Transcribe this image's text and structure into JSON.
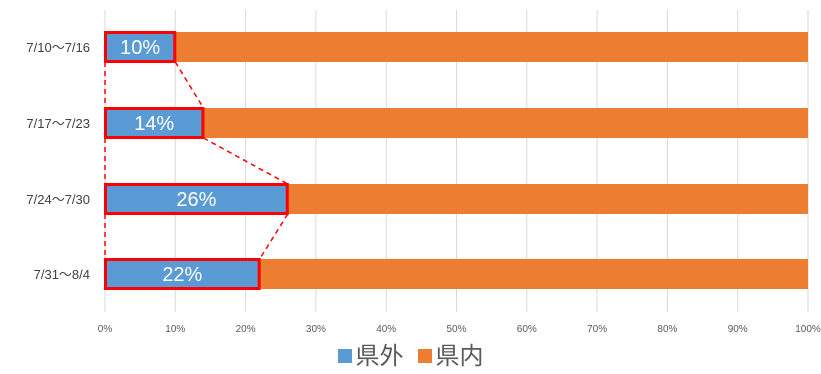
{
  "chart_data": {
    "type": "bar",
    "orientation": "horizontal",
    "stacked": true,
    "percent_stacked": true,
    "categories": [
      "7/10～7/16",
      "7/17～7/23",
      "7/24～7/30",
      "7/31～8/4"
    ],
    "series": [
      {
        "name": "県外",
        "values": [
          10,
          14,
          26,
          22
        ],
        "color": "#5b9bd5"
      },
      {
        "name": "県内",
        "values": [
          90,
          86,
          74,
          78
        ],
        "color": "#ed7d31"
      }
    ],
    "data_labels": [
      "10%",
      "14%",
      "26%",
      "22%"
    ],
    "xlim": [
      0,
      100
    ],
    "x_ticks": [
      "0%",
      "10%",
      "20%",
      "30%",
      "40%",
      "50%",
      "60%",
      "70%",
      "80%",
      "90%",
      "100%"
    ],
    "grid": "vertical",
    "legend_position": "bottom",
    "highlight": {
      "box_color": "#ff0000",
      "connector": "dashed",
      "connector_color": "#ff0000"
    }
  }
}
